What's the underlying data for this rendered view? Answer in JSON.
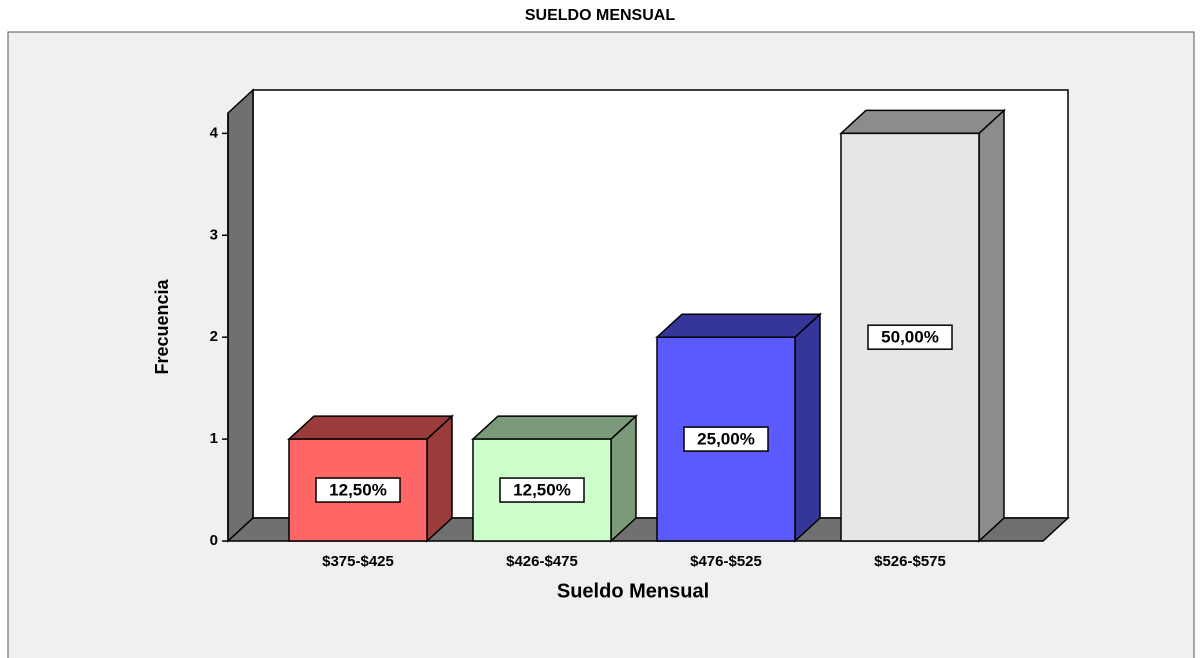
{
  "chart_data": {
    "type": "bar3d",
    "title": "SUELDO MENSUAL",
    "x_label": "Sueldo Mensual",
    "y_label": "Frecuencia",
    "categories": [
      "$375-$425",
      "$426-$475",
      "$476-$525",
      "$526-$575"
    ],
    "values": [
      1,
      1,
      2,
      4
    ],
    "percent_values": [
      12.5,
      12.5,
      25,
      50
    ],
    "percent_labels": [
      "12,50%",
      "12,50%",
      "25,00%",
      "50,00%"
    ],
    "colors": [
      "#ff6666",
      "#ccffcc",
      "#5a5aff",
      "#e6e6e6"
    ],
    "side_colors": [
      "#9a3c3c",
      "#7a9a7a",
      "#36369a",
      "#8c8c8c"
    ],
    "ylim": [
      0,
      4.2
    ],
    "yticks": [
      0,
      1,
      2,
      3,
      4
    ]
  }
}
